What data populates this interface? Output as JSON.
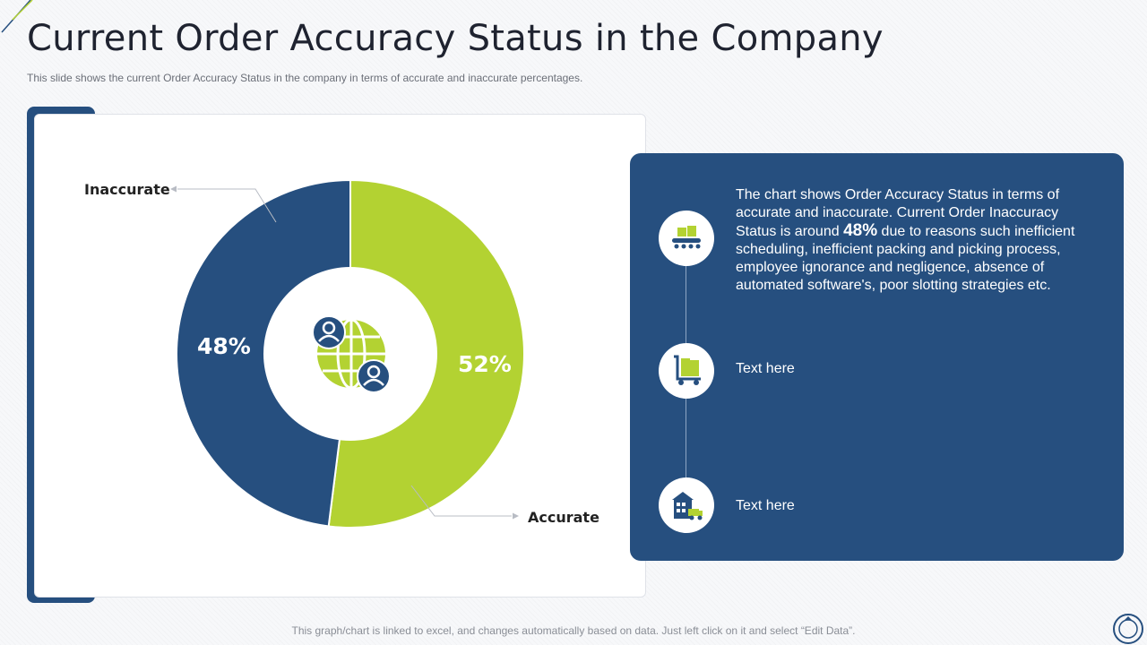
{
  "header": {
    "title": "Current Order Accuracy Status in the Company",
    "subtitle": "This slide shows the current Order Accuracy  Status in the company in terms of accurate and inaccurate percentages."
  },
  "chart_data": {
    "type": "pie",
    "categories": [
      "Accurate",
      "Inaccurate"
    ],
    "values": [
      52,
      48
    ],
    "value_labels": [
      "52%",
      "48%"
    ],
    "colors": {
      "Accurate": "#b3d232",
      "Inaccurate": "#264f7f"
    },
    "donut": true,
    "center_icon": "globe-users-icon"
  },
  "info_panel": {
    "items": [
      {
        "icon": "conveyor-boxes-icon",
        "text_before": "The chart shows Order Accuracy Status in terms of accurate and inaccurate. Current Order Inaccuracy Status is around ",
        "highlight": "48%",
        "text_after": " due to reasons such inefficient scheduling, inefficient packing and picking process, employee ignorance and negligence, absence of automated software's, poor slotting strategies etc."
      },
      {
        "icon": "cart-boxes-icon",
        "text": "Text here"
      },
      {
        "icon": "warehouse-truck-icon",
        "text": "Text here"
      }
    ]
  },
  "footer": {
    "note": "This graph/chart is linked to excel,  and changes automatically based on data. Just left click on it and select “Edit Data”."
  },
  "colors": {
    "navy": "#264f7f",
    "lime": "#b3d232"
  }
}
